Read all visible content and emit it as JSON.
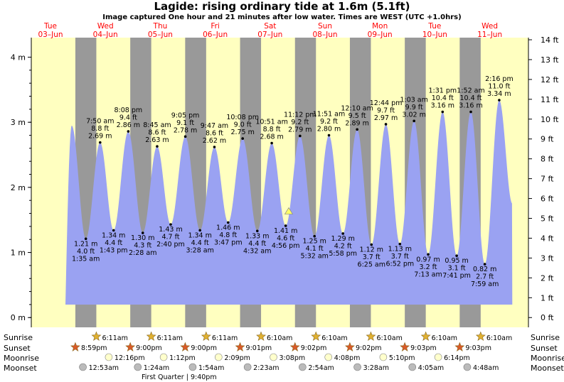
{
  "header": {
    "title": "Lagide: rising  ordinary tide at 1.6m (5.1ft)",
    "subtitle": "Image captured One hour and 21 minutes after low water. Times are WEST (UTC +1.0hrs)"
  },
  "colors": {
    "day_bg": "#ffffc0",
    "night_bg": "#999999",
    "tide_fill": "#9aa2f2",
    "date_label": "#ff0000",
    "marker": "#ffff66",
    "sun_icon": "#e0b030",
    "sunset_icon": "#d85a28",
    "moonrise_icon": "#ffffcc",
    "moonset_icon": "#bbbbbb"
  },
  "chart_data": {
    "type": "area",
    "y_label_left_unit": "m",
    "y_label_right_unit": "ft",
    "ylim_m": [
      -0.15,
      4.3
    ],
    "left_ticks": [
      "0 m",
      "1 m",
      "2 m",
      "3 m",
      "4 m"
    ],
    "right_ticks": [
      "0 ft",
      "1 ft",
      "2 ft",
      "3 ft",
      "4 ft",
      "5 ft",
      "6 ft",
      "7 ft",
      "8 ft",
      "9 ft",
      "10 ft",
      "11 ft",
      "12 ft",
      "13 ft",
      "14 ft"
    ],
    "days": [
      {
        "dow": "Tue",
        "date": "03–Jun"
      },
      {
        "dow": "Wed",
        "date": "04–Jun"
      },
      {
        "dow": "Thu",
        "date": "05–Jun"
      },
      {
        "dow": "Fri",
        "date": "06–Jun"
      },
      {
        "dow": "Sat",
        "date": "07–Jun"
      },
      {
        "dow": "Sun",
        "date": "08–Jun"
      },
      {
        "dow": "Mon",
        "date": "09–Jun"
      },
      {
        "dow": "Tue",
        "date": "10–Jun"
      },
      {
        "dow": "Wed",
        "date": "11–Jun"
      }
    ],
    "extremes": [
      {
        "kind": "high",
        "day": 0,
        "time_h": 19.4,
        "height_m": 2.95,
        "labels": []
      },
      {
        "kind": "low",
        "day": 1,
        "time_h": 1.58,
        "height_m": 1.21,
        "labels": [
          "1.21 m",
          "4.0 ft",
          "1:35 am"
        ]
      },
      {
        "kind": "high",
        "day": 1,
        "time_h": 7.83,
        "height_m": 2.69,
        "labels": [
          "7:50 am",
          "8.8 ft",
          "2.69 m"
        ]
      },
      {
        "kind": "low",
        "day": 1,
        "time_h": 13.72,
        "height_m": 1.34,
        "labels": [
          "1.34 m",
          "4.4 ft",
          "1:43 pm"
        ]
      },
      {
        "kind": "high",
        "day": 1,
        "time_h": 20.13,
        "height_m": 2.86,
        "labels": [
          "8:08 pm",
          "9.4 ft",
          "2.86 m"
        ]
      },
      {
        "kind": "low",
        "day": 2,
        "time_h": 2.47,
        "height_m": 1.3,
        "labels": [
          "1.30 m",
          "4.3 ft",
          "2:28 am"
        ]
      },
      {
        "kind": "high",
        "day": 2,
        "time_h": 8.75,
        "height_m": 2.63,
        "labels": [
          "8:45 am",
          "8.6 ft",
          "2.63 m"
        ]
      },
      {
        "kind": "low",
        "day": 2,
        "time_h": 14.67,
        "height_m": 1.43,
        "labels": [
          "1.43 m",
          "4.7 ft",
          "2:40 pm"
        ]
      },
      {
        "kind": "high",
        "day": 2,
        "time_h": 21.08,
        "height_m": 2.78,
        "labels": [
          "9:05 pm",
          "9.1 ft",
          "2.78 m"
        ]
      },
      {
        "kind": "low",
        "day": 3,
        "time_h": 3.47,
        "height_m": 1.34,
        "labels": [
          "1.34 m",
          "4.4 ft",
          "3:28 am"
        ]
      },
      {
        "kind": "high",
        "day": 3,
        "time_h": 9.78,
        "height_m": 2.62,
        "labels": [
          "9:47 am",
          "8.6 ft",
          "2.62 m"
        ]
      },
      {
        "kind": "low",
        "day": 3,
        "time_h": 15.78,
        "height_m": 1.46,
        "labels": [
          "1.46 m",
          "4.8 ft",
          "3:47 pm"
        ]
      },
      {
        "kind": "high",
        "day": 3,
        "time_h": 22.13,
        "height_m": 2.75,
        "labels": [
          "10:08 pm",
          "9.0 ft",
          "2.75 m"
        ]
      },
      {
        "kind": "low",
        "day": 4,
        "time_h": 4.53,
        "height_m": 1.33,
        "labels": [
          "1.33 m",
          "4.4 ft",
          "4:32 am"
        ]
      },
      {
        "kind": "high",
        "day": 4,
        "time_h": 10.85,
        "height_m": 2.68,
        "labels": [
          "10:51 am",
          "8.8 ft",
          "2.68 m"
        ]
      },
      {
        "kind": "low",
        "day": 4,
        "time_h": 16.93,
        "height_m": 1.41,
        "labels": [
          "1.41 m",
          "4.6 ft",
          "4:56 pm"
        ]
      },
      {
        "kind": "high",
        "day": 4,
        "time_h": 23.2,
        "height_m": 2.79,
        "labels": [
          "11:12 pm",
          "9.2 ft",
          "2.79 m"
        ]
      },
      {
        "kind": "low",
        "day": 5,
        "time_h": 5.53,
        "height_m": 1.25,
        "labels": [
          "1.25 m",
          "4.1 ft",
          "5:32 am"
        ]
      },
      {
        "kind": "high",
        "day": 5,
        "time_h": 11.85,
        "height_m": 2.8,
        "labels": [
          "11:51 am",
          "9.2 ft",
          "2.80 m"
        ]
      },
      {
        "kind": "low",
        "day": 5,
        "time_h": 17.97,
        "height_m": 1.29,
        "labels": [
          "1.29 m",
          "4.2 ft",
          "5:58 pm"
        ]
      },
      {
        "kind": "high",
        "day": 6,
        "time_h": 0.17,
        "height_m": 2.89,
        "labels": [
          "12:10 am",
          "9.5 ft",
          "2.89 m"
        ]
      },
      {
        "kind": "low",
        "day": 6,
        "time_h": 6.42,
        "height_m": 1.12,
        "labels": [
          "1.12 m",
          "3.7 ft",
          "6:25 am"
        ]
      },
      {
        "kind": "high",
        "day": 6,
        "time_h": 12.73,
        "height_m": 2.97,
        "labels": [
          "12:44 pm",
          "9.7 ft",
          "2.97 m"
        ]
      },
      {
        "kind": "low",
        "day": 6,
        "time_h": 18.87,
        "height_m": 1.13,
        "labels": [
          "1.13 m",
          "3.7 ft",
          "6:52 pm"
        ]
      },
      {
        "kind": "high",
        "day": 7,
        "time_h": 1.05,
        "height_m": 3.02,
        "labels": [
          "1:03 am",
          "9.9 ft",
          "3.02 m"
        ]
      },
      {
        "kind": "low",
        "day": 7,
        "time_h": 7.22,
        "height_m": 0.97,
        "labels": [
          "0.97 m",
          "3.2 ft",
          "7:13 am"
        ]
      },
      {
        "kind": "high",
        "day": 7,
        "time_h": 13.52,
        "height_m": 3.16,
        "labels": [
          "1:31 pm",
          "10.4 ft",
          "3.16 m"
        ]
      },
      {
        "kind": "low",
        "day": 7,
        "time_h": 19.68,
        "height_m": 0.95,
        "labels": [
          "0.95 m",
          "3.1 ft",
          "7:41 pm"
        ]
      },
      {
        "kind": "high",
        "day": 8,
        "time_h": 1.87,
        "height_m": 3.16,
        "labels": [
          "1:52 am",
          "10.4 ft",
          "3.16 m"
        ]
      },
      {
        "kind": "low",
        "day": 8,
        "time_h": 7.98,
        "height_m": 0.82,
        "labels": [
          "0.82 m",
          "2.7 ft",
          "7:59 am"
        ]
      },
      {
        "kind": "high",
        "day": 8,
        "time_h": 14.27,
        "height_m": 3.34,
        "labels": [
          "2:16 pm",
          "11.0 ft",
          "3.34 m"
        ]
      }
    ],
    "plot_end": {
      "day": 8,
      "time_h": 20.0,
      "height_m": 1.75
    },
    "current_marker": {
      "day": 4,
      "time_h": 18.27,
      "height_m": 1.6
    }
  },
  "astro": {
    "row_labels": {
      "sunrise": "Sunrise",
      "sunset": "Sunset",
      "moonrise": "Moonrise",
      "moonset": "Moonset"
    },
    "sunrise": [
      "6:11am",
      "6:11am",
      "6:11am",
      "6:10am",
      "6:10am",
      "6:10am",
      "6:10am",
      "6:10am"
    ],
    "sunset": [
      "8:59pm",
      "9:00pm",
      "9:00pm",
      "9:01pm",
      "9:02pm",
      "9:02pm",
      "9:03pm",
      "9:03pm"
    ],
    "moonrise": [
      "12:16pm",
      "1:12pm",
      "2:09pm",
      "3:08pm",
      "4:08pm",
      "5:10pm",
      "6:14pm"
    ],
    "moonset": [
      "12:53am",
      "1:24am",
      "1:54am",
      "2:23am",
      "2:54am",
      "3:28am",
      "4:05am",
      "4:48am"
    ],
    "moon_phase_note": "First Quarter | 9:40pm"
  }
}
